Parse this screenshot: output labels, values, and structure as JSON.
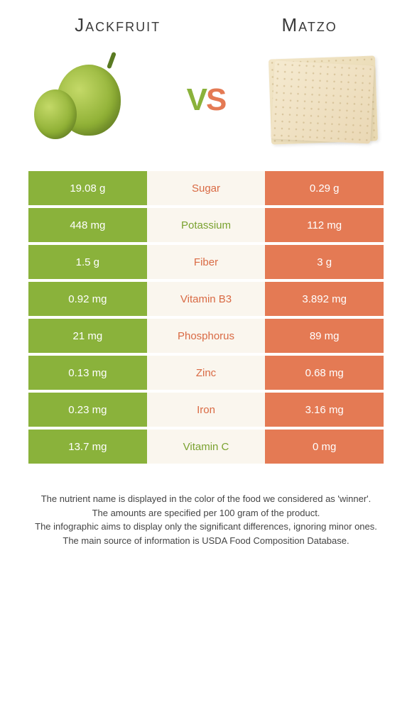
{
  "header": {
    "left_title": "Jackfruit",
    "right_title": "Matzo",
    "vs_v": "V",
    "vs_s": "S"
  },
  "colors": {
    "green": "#8ab23b",
    "orange": "#e47a54",
    "mid_bg": "#faf6ee",
    "mid_green_text": "#7aa230",
    "mid_orange_text": "#d96a44"
  },
  "rows": [
    {
      "left": "19.08 g",
      "label": "Sugar",
      "right": "0.29 g",
      "winner": "orange"
    },
    {
      "left": "448 mg",
      "label": "Potassium",
      "right": "112 mg",
      "winner": "green"
    },
    {
      "left": "1.5 g",
      "label": "Fiber",
      "right": "3 g",
      "winner": "orange"
    },
    {
      "left": "0.92 mg",
      "label": "Vitamin B3",
      "right": "3.892 mg",
      "winner": "orange"
    },
    {
      "left": "21 mg",
      "label": "Phosphorus",
      "right": "89 mg",
      "winner": "orange"
    },
    {
      "left": "0.13 mg",
      "label": "Zinc",
      "right": "0.68 mg",
      "winner": "orange"
    },
    {
      "left": "0.23 mg",
      "label": "Iron",
      "right": "3.16 mg",
      "winner": "orange"
    },
    {
      "left": "13.7 mg",
      "label": "Vitamin C",
      "right": "0 mg",
      "winner": "green"
    }
  ],
  "footer": {
    "line1": "The nutrient name is displayed in the color of the food we considered as 'winner'.",
    "line2": "The amounts are specified per 100 gram of the product.",
    "line3": "The infographic aims to display only the significant differences, ignoring minor ones.",
    "line4": "The main source of information is USDA Food Composition Database."
  }
}
